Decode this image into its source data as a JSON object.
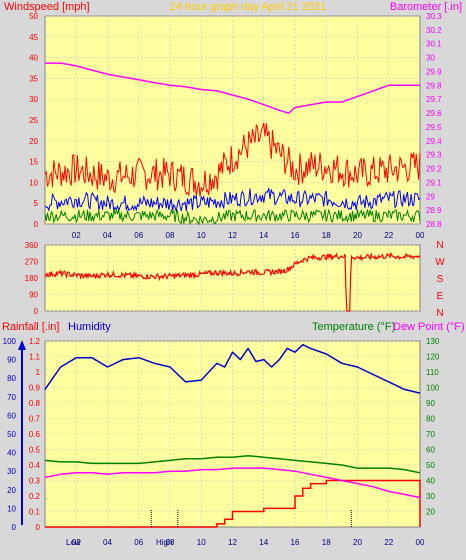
{
  "header": {
    "left_label": "Windspeed [mph]",
    "title": "24 hour graph day   April 21 2021",
    "right_label": "Barometer [.in]"
  },
  "colors": {
    "background": "#d8d8d8",
    "plot_bg": "#ffffa0",
    "grid": "#c8c8c8",
    "wind": "#ff0000",
    "gust_avg": "#0000ff",
    "wind_low": "#008000",
    "barometer": "#ff00ff",
    "direction": "#ff0000",
    "rain": "#ff0000",
    "humidity": "#0000cc",
    "temperature": "#008000",
    "dewpoint": "#ff00ff",
    "left_axis": "#ff0000",
    "barometer_axis": "#ff00ff",
    "temp_axis": "#008000"
  },
  "x_tick_labels": [
    "02",
    "04",
    "06",
    "08",
    "10",
    "12",
    "14",
    "16",
    "18",
    "20",
    "22",
    "00"
  ],
  "panel_direction": {
    "y_ticks": [
      "360",
      "270",
      "180",
      "90",
      "0"
    ],
    "compass_labels": [
      "N",
      "W",
      "S",
      "E",
      "N"
    ]
  },
  "panel_bottom": {
    "rain_label": "Rainfall [.in]",
    "humidity_label": "Humidity",
    "temp_label": "Temperature (°F)",
    "dew_label": "Dew Point (°F)",
    "low_label": "Low",
    "high_label": "High"
  },
  "chart_data": [
    {
      "type": "line",
      "title": "24 hour graph day   April 21 2021",
      "x_range_hours": [
        0,
        24
      ],
      "left_axis": {
        "label": "Windspeed [mph]",
        "ylim": [
          0,
          50
        ],
        "ticks": [
          "0",
          "5",
          "10",
          "15",
          "20",
          "25",
          "30",
          "35",
          "40",
          "45",
          "50"
        ]
      },
      "right_axis": {
        "label": "Barometer [.in]",
        "ylim": [
          28.8,
          30.3
        ],
        "ticks": [
          "28.8",
          "28.9",
          "29",
          "29.1",
          "29.2",
          "29.3",
          "29.4",
          "29.5",
          "29.6",
          "29.7",
          "29.8",
          "29.9",
          "30",
          "30.1",
          "30.2",
          "30.3"
        ]
      },
      "series": [
        {
          "key": "wind_max",
          "x": [
            0,
            2,
            4,
            6,
            8,
            10,
            11,
            12,
            13,
            14,
            15,
            16,
            17,
            18,
            20,
            22,
            24
          ],
          "values": [
            12,
            13,
            11,
            12,
            12,
            10,
            12,
            16,
            19,
            21,
            17,
            13,
            14,
            14,
            12,
            13,
            14
          ]
        },
        {
          "key": "wind_avg",
          "x": [
            0,
            2,
            4,
            6,
            8,
            10,
            12,
            14,
            16,
            18,
            20,
            22,
            24
          ],
          "values": [
            5,
            6,
            5,
            5,
            5,
            5,
            6,
            7,
            6,
            6,
            5,
            6,
            6
          ]
        },
        {
          "key": "wind_min",
          "x": [
            0,
            2,
            4,
            6,
            8,
            10,
            12,
            14,
            16,
            18,
            20,
            22,
            24
          ],
          "values": [
            2,
            2,
            2,
            2,
            2,
            1,
            2,
            2,
            2,
            2,
            2,
            2,
            2
          ]
        },
        {
          "key": "barometer",
          "x": [
            0,
            1,
            2,
            3,
            4,
            5,
            6,
            7,
            8,
            9,
            10,
            11,
            12,
            13,
            14,
            15,
            15.6,
            16,
            17,
            18,
            19,
            20,
            21,
            22,
            23,
            24
          ],
          "values": [
            29.96,
            29.96,
            29.94,
            29.91,
            29.88,
            29.86,
            29.84,
            29.82,
            29.8,
            29.79,
            29.77,
            29.76,
            29.73,
            29.7,
            29.66,
            29.62,
            29.6,
            29.64,
            29.66,
            29.68,
            29.68,
            29.72,
            29.76,
            29.8,
            29.8,
            29.8
          ]
        }
      ]
    },
    {
      "type": "line",
      "title": "",
      "ylabel": "",
      "x_range_hours": [
        0,
        24
      ],
      "ylim": [
        0,
        360
      ],
      "series": [
        {
          "key": "wind_direction",
          "x": [
            0,
            1,
            2,
            3,
            4,
            5,
            6,
            7,
            8,
            9,
            10,
            11,
            12,
            13,
            14,
            15,
            15.5,
            16,
            16.5,
            17,
            18,
            19,
            19.2,
            19.3,
            19.5,
            19.6,
            20,
            21,
            22,
            23,
            24
          ],
          "values": [
            200,
            205,
            195,
            190,
            200,
            195,
            190,
            188,
            190,
            195,
            200,
            210,
            205,
            215,
            210,
            215,
            225,
            255,
            280,
            290,
            295,
            300,
            300,
            0,
            0,
            300,
            290,
            295,
            300,
            295,
            300
          ]
        }
      ]
    },
    {
      "type": "line",
      "title": "",
      "x_range_hours": [
        0,
        24
      ],
      "left_axis": {
        "label": "Rainfall [.in]",
        "ylim": [
          0,
          1.2
        ],
        "ticks": [
          "0",
          "0.1",
          "0.2",
          "0.3",
          "0.4",
          "0.5",
          "0.6",
          "0.7",
          "0.8",
          "0.9",
          "1",
          "1.1",
          "1.2"
        ]
      },
      "humidity_axis": {
        "label": "Humidity",
        "ylim": [
          0,
          100
        ],
        "ticks": [
          "0",
          "10",
          "20",
          "30",
          "40",
          "50",
          "60",
          "70",
          "80",
          "90",
          "100"
        ]
      },
      "right_axis": {
        "label": "Temperature (°F)",
        "ylim": [
          10,
          130
        ],
        "ticks": [
          "20",
          "30",
          "40",
          "50",
          "60",
          "70",
          "80",
          "90",
          "100",
          "110",
          "120",
          "130"
        ]
      },
      "series": [
        {
          "key": "rainfall",
          "x": [
            0,
            10,
            10.5,
            11,
            11.5,
            12,
            14,
            15,
            16,
            16.5,
            17,
            18,
            20,
            22,
            23.9,
            24
          ],
          "values": [
            0,
            0,
            0,
            0.02,
            0.05,
            0.1,
            0.12,
            0.12,
            0.2,
            0.25,
            0.28,
            0.3,
            0.3,
            0.3,
            0.3,
            0
          ]
        },
        {
          "key": "humidity",
          "x": [
            0,
            0.5,
            1,
            2,
            3,
            4,
            5,
            6,
            7,
            8,
            9,
            10,
            11,
            11.5,
            12,
            12.5,
            13,
            13.5,
            14,
            14.5,
            15,
            15.5,
            16,
            16.5,
            17,
            18,
            19,
            20,
            21,
            22,
            23,
            24
          ],
          "values": [
            74,
            80,
            86,
            91,
            91,
            86,
            90,
            91,
            88,
            86,
            78,
            79,
            88,
            86,
            94,
            90,
            96,
            89,
            90,
            86,
            90,
            96,
            94,
            98,
            96,
            93,
            88,
            86,
            82,
            78,
            74,
            72
          ]
        },
        {
          "key": "temperature",
          "x": [
            0,
            1,
            2,
            3,
            4,
            5,
            6,
            7,
            8,
            9,
            10,
            11,
            12,
            13,
            14,
            15,
            16,
            17,
            18,
            19,
            20,
            21,
            22,
            23,
            24
          ],
          "values": [
            53,
            52,
            52,
            51,
            51,
            51,
            51,
            52,
            53,
            54,
            54,
            55,
            55,
            56,
            55,
            54,
            53,
            52,
            51,
            50,
            48,
            48,
            48,
            47,
            45
          ]
        },
        {
          "key": "dewpoint",
          "x": [
            0,
            1,
            2,
            3,
            4,
            5,
            6,
            7,
            8,
            9,
            10,
            11,
            12,
            13,
            14,
            15,
            16,
            17,
            18,
            19,
            20,
            21,
            22,
            23,
            24
          ],
          "values": [
            42,
            44,
            45,
            45,
            44,
            45,
            45,
            45,
            46,
            46,
            47,
            47,
            48,
            48,
            48,
            47,
            46,
            44,
            42,
            40,
            38,
            36,
            33,
            31,
            29
          ]
        }
      ]
    }
  ]
}
